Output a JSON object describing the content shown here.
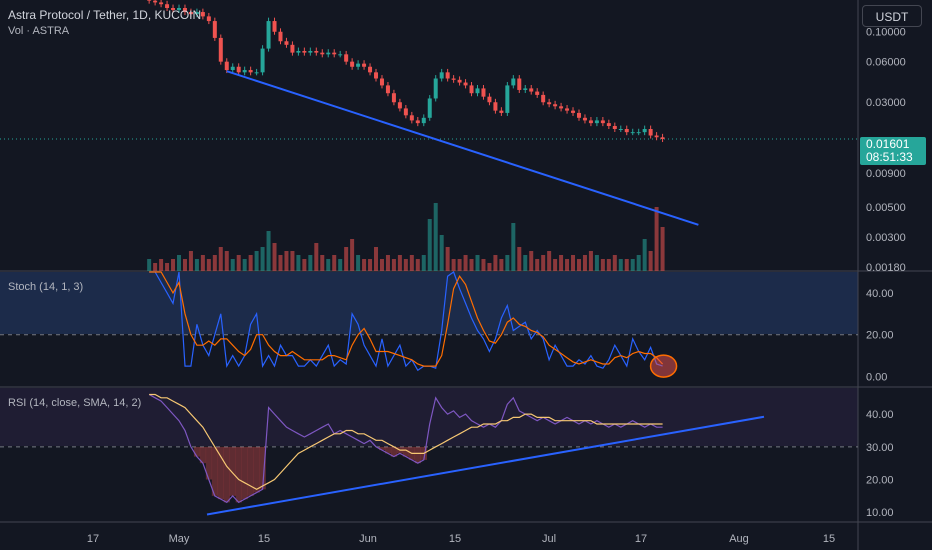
{
  "header": {
    "symbol": "Astra Protocol / Tether, 1D, KUCOIN",
    "volume_label": "Vol · ASTRA",
    "currency_button": "USDT"
  },
  "price_badge": {
    "price": "0.01601",
    "countdown": "08:51:33"
  },
  "stoch_legend": "Stoch (14, 1, 3)",
  "rsi_legend": "RSI (14, close, SMA, 14, 2)",
  "colors": {
    "up": "#26a69a",
    "down": "#ef5350",
    "trend": "#2962ff",
    "k": "#2962ff",
    "d": "#ff6d00",
    "rsi": "#7e57c2",
    "rsi_ma": "#f7c873"
  },
  "chart_data": [
    {
      "type": "line",
      "title": "Astra Protocol / Tether, 1D, KUCOIN",
      "subtitle": "Vol · ASTRA",
      "y_scale": "log",
      "ylim": [
        0.0018,
        0.15
      ],
      "y_ticks": [
        "0.10000",
        "0.06000",
        "0.03000",
        "0.00900",
        "0.00500",
        "0.00300",
        "0.00180"
      ],
      "x_ticks": [
        "17",
        "May",
        "15",
        "Jun",
        "15",
        "Jul",
        "17",
        "Aug",
        "15"
      ],
      "last_price": 0.01601,
      "series": [
        {
          "type": "candlestick",
          "x": [
            "Apr 26",
            "Apr 27",
            "Apr 28",
            "Apr 29",
            "Apr 30",
            "May 1",
            "May 2",
            "May 3",
            "May 4",
            "May 5",
            "May 6",
            "May 7",
            "May 8",
            "May 9",
            "May 10",
            "May 11",
            "May 12",
            "May 13",
            "May 14",
            "May 15",
            "May 16",
            "May 17",
            "May 18",
            "May 19",
            "May 20",
            "May 21",
            "May 22",
            "May 23",
            "May 24",
            "May 25",
            "May 26",
            "May 27",
            "May 28",
            "May 29",
            "May 30",
            "May 31",
            "Jun 1",
            "Jun 2",
            "Jun 3",
            "Jun 4",
            "Jun 5",
            "Jun 6",
            "Jun 7",
            "Jun 8",
            "Jun 9",
            "Jun 10",
            "Jun 11",
            "Jun 12",
            "Jun 13",
            "Jun 14",
            "Jun 15",
            "Jun 16",
            "Jun 17",
            "Jun 18",
            "Jun 19",
            "Jun 20",
            "Jun 21",
            "Jun 22",
            "Jun 23",
            "Jun 24",
            "Jun 25",
            "Jun 26",
            "Jun 27",
            "Jun 28",
            "Jun 29",
            "Jun 30",
            "Jul 1",
            "Jul 2",
            "Jul 3",
            "Jul 4",
            "Jul 5",
            "Jul 6",
            "Jul 7",
            "Jul 8",
            "Jul 9",
            "Jul 10",
            "Jul 11",
            "Jul 12",
            "Jul 13",
            "Jul 14",
            "Jul 15",
            "Jul 16",
            "Jul 17",
            "Jul 18",
            "Jul 19",
            "Jul 20",
            "Jul 21"
          ],
          "close": [
            0.17,
            0.165,
            0.16,
            0.15,
            0.145,
            0.15,
            0.14,
            0.135,
            0.14,
            0.13,
            0.12,
            0.09,
            0.06,
            0.052,
            0.055,
            0.05,
            0.052,
            0.05,
            0.05,
            0.075,
            0.12,
            0.1,
            0.085,
            0.08,
            0.07,
            0.072,
            0.07,
            0.072,
            0.07,
            0.068,
            0.07,
            0.068,
            0.068,
            0.06,
            0.055,
            0.058,
            0.055,
            0.05,
            0.045,
            0.04,
            0.035,
            0.03,
            0.027,
            0.024,
            0.022,
            0.021,
            0.023,
            0.032,
            0.045,
            0.05,
            0.045,
            0.044,
            0.042,
            0.04,
            0.035,
            0.038,
            0.033,
            0.03,
            0.026,
            0.025,
            0.04,
            0.045,
            0.037,
            0.038,
            0.036,
            0.034,
            0.03,
            0.029,
            0.028,
            0.027,
            0.026,
            0.025,
            0.023,
            0.022,
            0.021,
            0.022,
            0.021,
            0.02,
            0.019,
            0.019,
            0.018,
            0.018,
            0.018,
            0.019,
            0.017,
            0.0165,
            0.01601
          ]
        },
        {
          "name": "Vol · ASTRA",
          "type": "volume",
          "values": [
            3,
            2,
            3,
            2,
            3,
            4,
            3,
            5,
            3,
            4,
            3,
            4,
            6,
            5,
            3,
            4,
            3,
            4,
            5,
            6,
            10,
            7,
            4,
            5,
            5,
            4,
            3,
            4,
            7,
            4,
            3,
            4,
            3,
            6,
            8,
            4,
            3,
            3,
            6,
            3,
            4,
            3,
            4,
            3,
            4,
            3,
            4,
            13,
            17,
            9,
            6,
            3,
            3,
            4,
            3,
            4,
            3,
            2,
            4,
            3,
            4,
            12,
            6,
            4,
            5,
            3,
            4,
            5,
            3,
            4,
            3,
            4,
            3,
            4,
            5,
            4,
            3,
            3,
            4,
            3,
            3,
            3,
            4,
            8,
            5,
            16,
            11
          ]
        }
      ],
      "trendline": {
        "from": [
          "May 9",
          0.051
        ],
        "to": [
          "Jul 27",
          0.0037
        ]
      }
    },
    {
      "type": "line",
      "title": "Stoch (14, 1, 3)",
      "ylim": [
        -5,
        50
      ],
      "y_ticks": [
        "40.00",
        "20.00",
        "0.00"
      ],
      "series": [
        {
          "name": "K",
          "values": [
            80,
            60,
            45,
            40,
            35,
            55,
            5,
            5,
            25,
            15,
            10,
            20,
            30,
            5,
            10,
            5,
            10,
            25,
            30,
            5,
            10,
            5,
            15,
            10,
            10,
            5,
            5,
            8,
            5,
            10,
            15,
            5,
            8,
            6,
            30,
            25,
            15,
            10,
            5,
            18,
            5,
            10,
            15,
            5,
            8,
            3,
            5,
            5,
            4,
            22,
            48,
            55,
            42,
            35,
            28,
            22,
            18,
            12,
            18,
            28,
            34,
            22,
            24,
            26,
            18,
            22,
            18,
            8,
            15,
            10,
            5,
            5,
            8,
            6,
            10,
            5,
            4,
            8,
            15,
            10,
            5,
            18,
            12,
            8,
            14,
            6,
            5
          ]
        },
        {
          "name": "D",
          "values": [
            70,
            60,
            50,
            45,
            40,
            45,
            30,
            20,
            15,
            15,
            17,
            15,
            18,
            18,
            15,
            12,
            10,
            13,
            20,
            20,
            15,
            12,
            10,
            10,
            12,
            10,
            8,
            8,
            8,
            8,
            10,
            10,
            9,
            8,
            15,
            20,
            23,
            18,
            12,
            12,
            12,
            11,
            10,
            9,
            8,
            6,
            5,
            5,
            5,
            10,
            25,
            42,
            48,
            44,
            36,
            28,
            22,
            17,
            16,
            20,
            26,
            28,
            25,
            24,
            22,
            21,
            19,
            15,
            13,
            11,
            9,
            7,
            6,
            7,
            8,
            7,
            6,
            6,
            9,
            10,
            9,
            11,
            12,
            11,
            11,
            9,
            6
          ]
        }
      ]
    },
    {
      "type": "line",
      "title": "RSI (14, close, SMA, 14, 2)",
      "ylim": [
        7,
        48
      ],
      "y_ticks": [
        "40.00",
        "30.00",
        "20.00",
        "10.00"
      ],
      "series": [
        {
          "name": "RSI",
          "values": [
            46,
            45,
            44,
            42,
            40,
            38,
            35,
            30,
            27,
            25,
            20,
            15,
            14,
            13,
            15,
            13,
            14,
            15,
            16,
            17,
            42,
            40,
            38,
            36,
            35,
            34,
            33,
            34,
            35,
            36,
            37,
            34,
            35,
            34,
            33,
            32,
            31,
            32,
            30,
            29,
            28,
            27,
            28,
            27,
            26,
            25,
            26,
            37,
            45,
            42,
            40,
            41,
            39,
            40,
            38,
            37,
            36,
            37,
            36,
            38,
            43,
            45,
            41,
            40,
            39,
            38,
            39,
            38,
            37,
            38,
            39,
            38,
            37,
            38,
            37,
            38,
            37,
            36,
            37,
            36,
            37,
            38,
            37,
            36,
            37,
            36,
            36
          ]
        },
        {
          "name": "RSI-based MA",
          "values": [
            46,
            46,
            45,
            45,
            44,
            43,
            42,
            40,
            38,
            36,
            33,
            30,
            27,
            24,
            22,
            20,
            19,
            18,
            17,
            18,
            19,
            20,
            22,
            24,
            26,
            28,
            29,
            30,
            31,
            32,
            33,
            34,
            34,
            35,
            35,
            34,
            34,
            33,
            32,
            32,
            31,
            30,
            29,
            29,
            28,
            28,
            28,
            29,
            30,
            31,
            32,
            33,
            34,
            35,
            36,
            36,
            37,
            37,
            37,
            38,
            38,
            39,
            39,
            40,
            40,
            39,
            39,
            39,
            38,
            38,
            38,
            38,
            38,
            38,
            38,
            37,
            37,
            37,
            37,
            37,
            37,
            37,
            37,
            37,
            37,
            37,
            37
          ]
        }
      ]
    }
  ]
}
